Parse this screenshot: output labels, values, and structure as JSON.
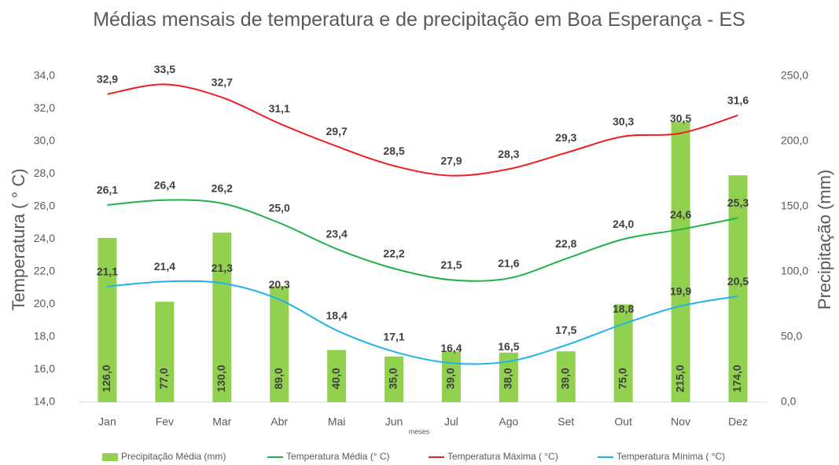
{
  "chart_data": {
    "type": "combo",
    "title": "Médias mensais de temperatura e de precipitação em Boa Esperança - ES",
    "y_label": "Temperatura ( ° C)",
    "y2_label": "Precipitação (mm)",
    "x_label": "meses",
    "categories": [
      "Jan",
      "Fev",
      "Mar",
      "Abr",
      "Mai",
      "Jun",
      "Jul",
      "Ago",
      "Set",
      "Out",
      "Nov",
      "Dez"
    ],
    "ylim": [
      14,
      34
    ],
    "yticks": [
      {
        "value": 14,
        "label": "14,0"
      },
      {
        "value": 16,
        "label": "16,0"
      },
      {
        "value": 18,
        "label": "18,0"
      },
      {
        "value": 20,
        "label": "20,0"
      },
      {
        "value": 22,
        "label": "22,0"
      },
      {
        "value": 24,
        "label": "24,0"
      },
      {
        "value": 26,
        "label": "26,0"
      },
      {
        "value": 28,
        "label": "28,0"
      },
      {
        "value": 30,
        "label": "30,0"
      },
      {
        "value": 32,
        "label": "32,0"
      },
      {
        "value": 34,
        "label": "34,0"
      }
    ],
    "y2lim": [
      0,
      250
    ],
    "y2ticks": [
      {
        "value": 0,
        "label": "0,0"
      },
      {
        "value": 50,
        "label": "50,0"
      },
      {
        "value": 100,
        "label": "100,0"
      },
      {
        "value": 150,
        "label": "150,0"
      },
      {
        "value": 200,
        "label": "200,0"
      },
      {
        "value": 250,
        "label": "250,0"
      }
    ],
    "grid": false,
    "legend": "bottom",
    "series": [
      {
        "name": "Precipitação Média (mm)",
        "type": "bar",
        "axis": "y2",
        "color": "#92d050",
        "values": [
          126,
          77,
          130,
          89,
          40,
          35,
          39,
          38,
          39,
          75,
          215,
          174
        ],
        "value_labels": [
          "126,0",
          "77,0",
          "130,0",
          "89,0",
          "40,0",
          "35,0",
          "39,0",
          "38,0",
          "39,0",
          "75,0",
          "215,0",
          "174,0"
        ]
      },
      {
        "name": "Temperatura Média (° C)",
        "type": "line",
        "color": "#22b04b",
        "values": [
          26.1,
          26.4,
          26.2,
          25.0,
          23.4,
          22.2,
          21.5,
          21.6,
          22.8,
          24.0,
          24.6,
          25.3
        ],
        "value_labels": [
          "26,1",
          "26,4",
          "26,2",
          "25,0",
          "23,4",
          "22,2",
          "21,5",
          "21,6",
          "22,8",
          "24,0",
          "24,6",
          "25,3"
        ]
      },
      {
        "name": "Temperatura Máxima ( °C)",
        "type": "line",
        "color": "#ee1c25",
        "values": [
          32.9,
          33.5,
          32.7,
          31.1,
          29.7,
          28.5,
          27.9,
          28.3,
          29.3,
          30.3,
          30.5,
          31.6
        ],
        "value_labels": [
          "32,9",
          "33,5",
          "32,7",
          "31,1",
          "29,7",
          "28,5",
          "27,9",
          "28,3",
          "29,3",
          "30,3",
          "30,5",
          "31,6"
        ]
      },
      {
        "name": "Temperatura Mínima ( °C)",
        "type": "line",
        "color": "#1fb4e8",
        "values": [
          21.1,
          21.4,
          21.3,
          20.3,
          18.4,
          17.1,
          16.4,
          16.5,
          17.5,
          18.8,
          19.9,
          20.5
        ],
        "value_labels": [
          "21,1",
          "21,4",
          "21,3",
          "20,3",
          "18,4",
          "17,1",
          "16,4",
          "16,5",
          "17,5",
          "18,8",
          "19,9",
          "20,5"
        ]
      }
    ]
  }
}
